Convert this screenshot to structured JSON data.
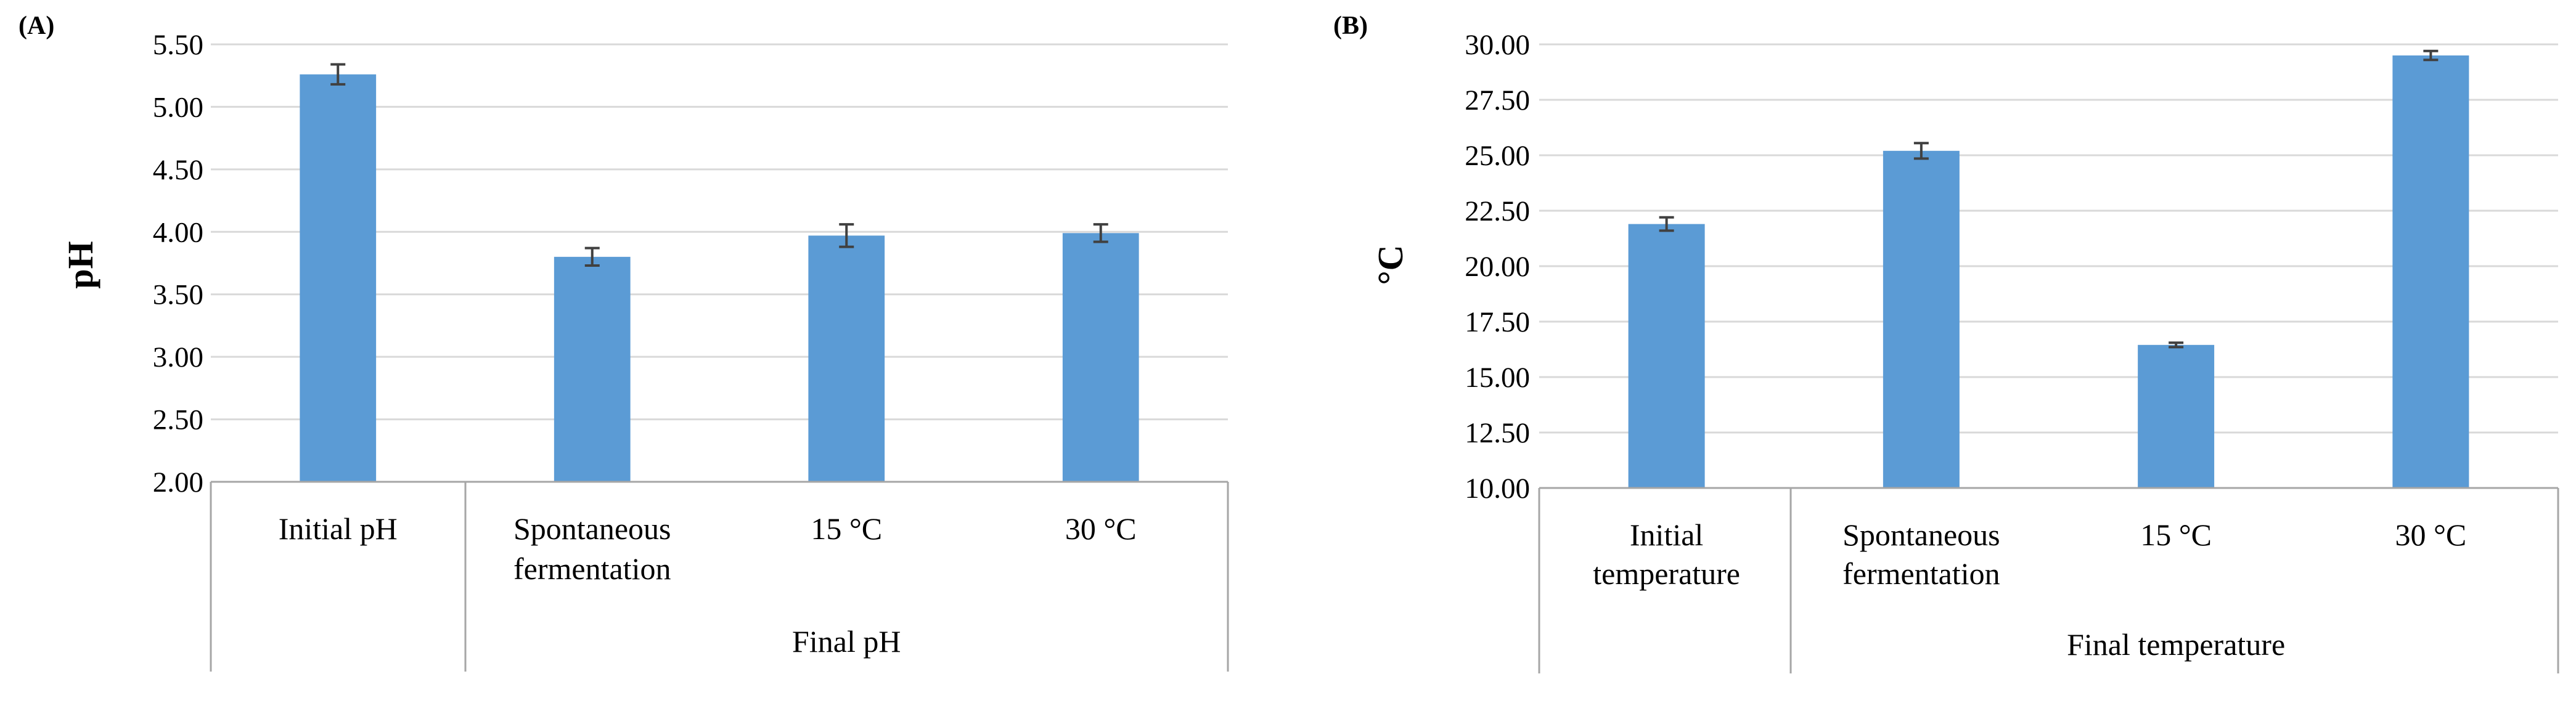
{
  "chart_data": [
    {
      "type": "bar",
      "panel_label": "(A)",
      "ylabel": "pH",
      "ylim": [
        2.0,
        5.5
      ],
      "yticks": [
        "2.00",
        "2.50",
        "3.00",
        "3.50",
        "4.00",
        "4.50",
        "5.00",
        "5.50"
      ],
      "grid": true,
      "bar_color": "#5b9bd5",
      "categories": [
        {
          "label": [
            "Initial pH"
          ],
          "value": 5.26,
          "error": 0.08
        },
        {
          "label": [
            "Spontaneous",
            "fermentation"
          ],
          "value": 3.8,
          "error": 0.07
        },
        {
          "label": [
            "15 °C"
          ],
          "value": 3.97,
          "error": 0.09
        },
        {
          "label": [
            "30 °C"
          ],
          "value": 3.99,
          "error": 0.07
        }
      ],
      "groups": [
        {
          "label": "",
          "span": [
            0,
            0
          ]
        },
        {
          "label": "Final pH",
          "span": [
            1,
            3
          ]
        }
      ]
    },
    {
      "type": "bar",
      "panel_label": "(B)",
      "ylabel": "°C",
      "ylim": [
        10.0,
        30.0
      ],
      "yticks": [
        "10.00",
        "12.50",
        "15.00",
        "17.50",
        "20.00",
        "22.50",
        "25.00",
        "27.50",
        "30.00"
      ],
      "grid": true,
      "bar_color": "#5b9bd5",
      "categories": [
        {
          "label": [
            "Initial",
            "temperature"
          ],
          "value": 21.9,
          "error": 0.3
        },
        {
          "label": [
            "Spontaneous",
            "fermentation"
          ],
          "value": 25.2,
          "error": 0.35
        },
        {
          "label": [
            "15 °C"
          ],
          "value": 16.45,
          "error": 0.1
        },
        {
          "label": [
            "30 °C"
          ],
          "value": 29.5,
          "error": 0.2
        }
      ],
      "groups": [
        {
          "label": "",
          "span": [
            0,
            0
          ]
        },
        {
          "label": "Final temperature",
          "span": [
            1,
            3
          ]
        }
      ]
    }
  ]
}
